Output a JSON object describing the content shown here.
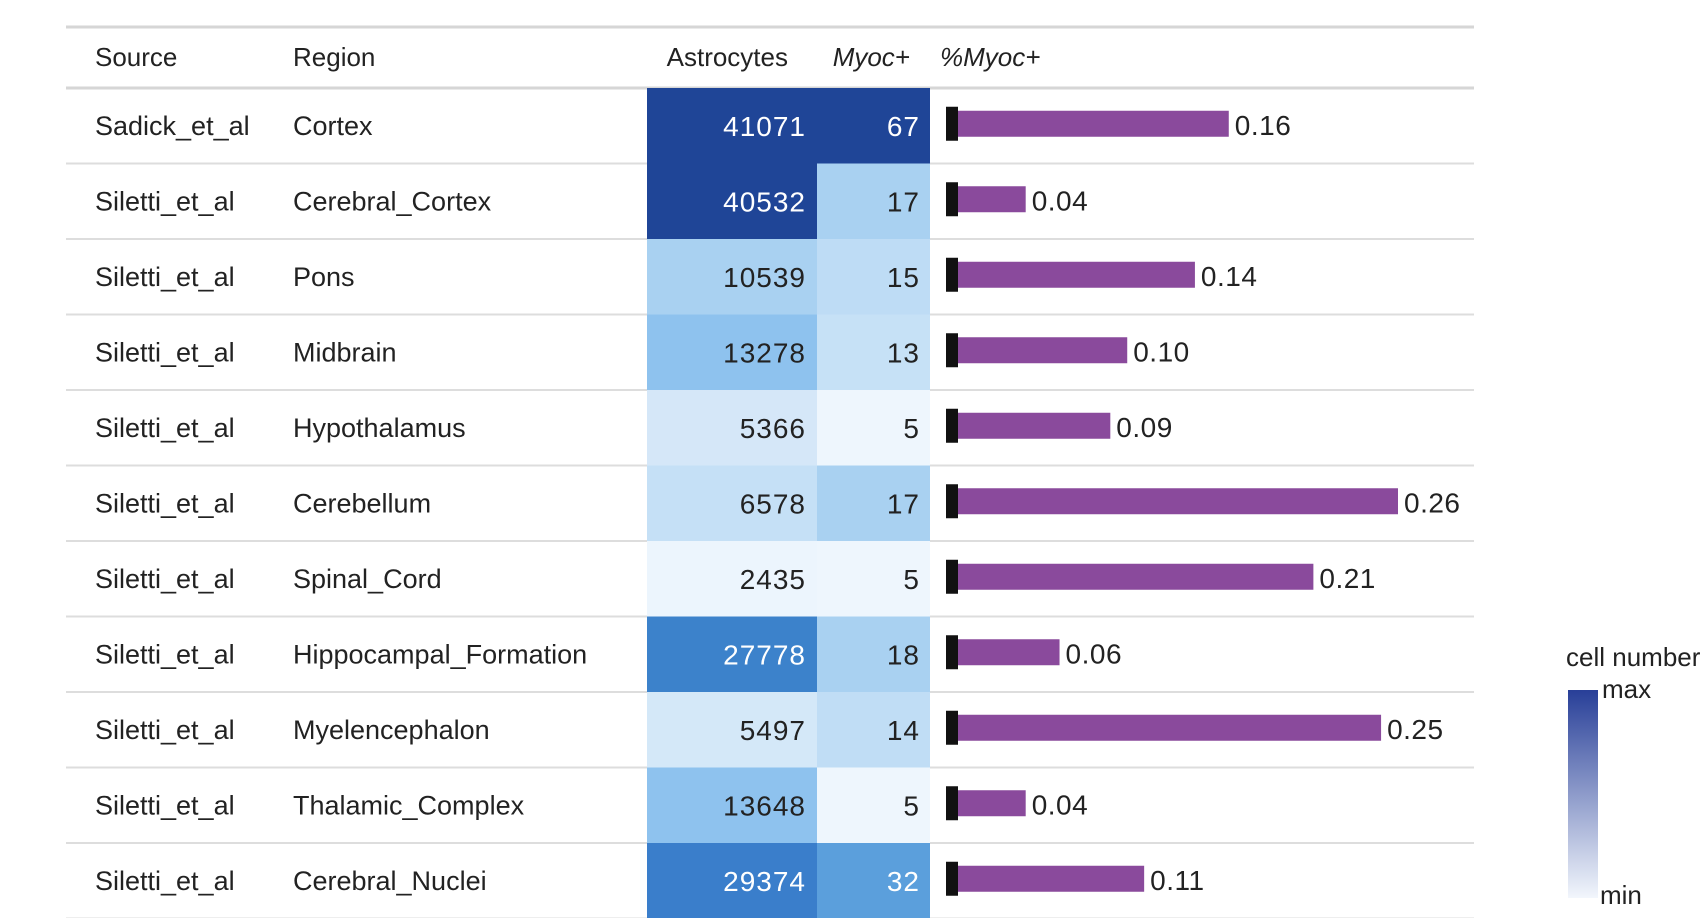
{
  "chart_data": {
    "type": "table",
    "columns": [
      "Source",
      "Region",
      "Astrocytes",
      "Myoc+",
      "%Myoc+"
    ],
    "rows": [
      {
        "source": "Sadick_et_al",
        "region": "Cortex",
        "astrocytes": "41071",
        "myoc": "67",
        "pct": 0.16,
        "pct_label": "0.16"
      },
      {
        "source": "Siletti_et_al",
        "region": "Cerebral_Cortex",
        "astrocytes": "40532",
        "myoc": "17",
        "pct": 0.04,
        "pct_label": "0.04"
      },
      {
        "source": "Siletti_et_al",
        "region": "Pons",
        "astrocytes": "10539",
        "myoc": "15",
        "pct": 0.14,
        "pct_label": "0.14"
      },
      {
        "source": "Siletti_et_al",
        "region": "Midbrain",
        "astrocytes": "13278",
        "myoc": "13",
        "pct": 0.1,
        "pct_label": "0.10"
      },
      {
        "source": "Siletti_et_al",
        "region": "Hypothalamus",
        "astrocytes": "5366",
        "myoc": "5",
        "pct": 0.09,
        "pct_label": "0.09"
      },
      {
        "source": "Siletti_et_al",
        "region": "Cerebellum",
        "astrocytes": "6578",
        "myoc": "17",
        "pct": 0.26,
        "pct_label": "0.26"
      },
      {
        "source": "Siletti_et_al",
        "region": "Spinal_Cord",
        "astrocytes": "2435",
        "myoc": "5",
        "pct": 0.21,
        "pct_label": "0.21"
      },
      {
        "source": "Siletti_et_al",
        "region": "Hippocampal_Formation",
        "astrocytes": "27778",
        "myoc": "18",
        "pct": 0.06,
        "pct_label": "0.06"
      },
      {
        "source": "Siletti_et_al",
        "region": "Myelencephalon",
        "astrocytes": "5497",
        "myoc": "14",
        "pct": 0.25,
        "pct_label": "0.25"
      },
      {
        "source": "Siletti_et_al",
        "region": "Thalamic_Complex",
        "astrocytes": "13648",
        "myoc": "5",
        "pct": 0.04,
        "pct_label": "0.04"
      },
      {
        "source": "Siletti_et_al",
        "region": "Cerebral_Nuclei",
        "astrocytes": "29374",
        "myoc": "32",
        "pct": 0.11,
        "pct_label": "0.11"
      }
    ],
    "bar_max": 0.26,
    "bar_color": "#8a4a9c",
    "legend": {
      "title": "cell number",
      "max_label": "max",
      "min_label": "min",
      "gradient": [
        "#f2f6fc",
        "#283f98"
      ]
    },
    "cell_colors": {
      "astrocytes": [
        "#1f4597",
        "#1f4597",
        "#a9d1f1",
        "#8ec2ee",
        "#d5e7f8",
        "#c5e0f6",
        "#ecf5fd",
        "#3c82cb",
        "#d4e8f8",
        "#8ec2ee",
        "#3a7ecb"
      ],
      "myoc": [
        "#1f4597",
        "#a9d1f1",
        "#bedcf5",
        "#c6e1f6",
        "#eef6fd",
        "#a9d1f1",
        "#eef6fd",
        "#a9d1f1",
        "#c0ddf5",
        "#eef6fd",
        "#5b9fdc"
      ]
    }
  }
}
